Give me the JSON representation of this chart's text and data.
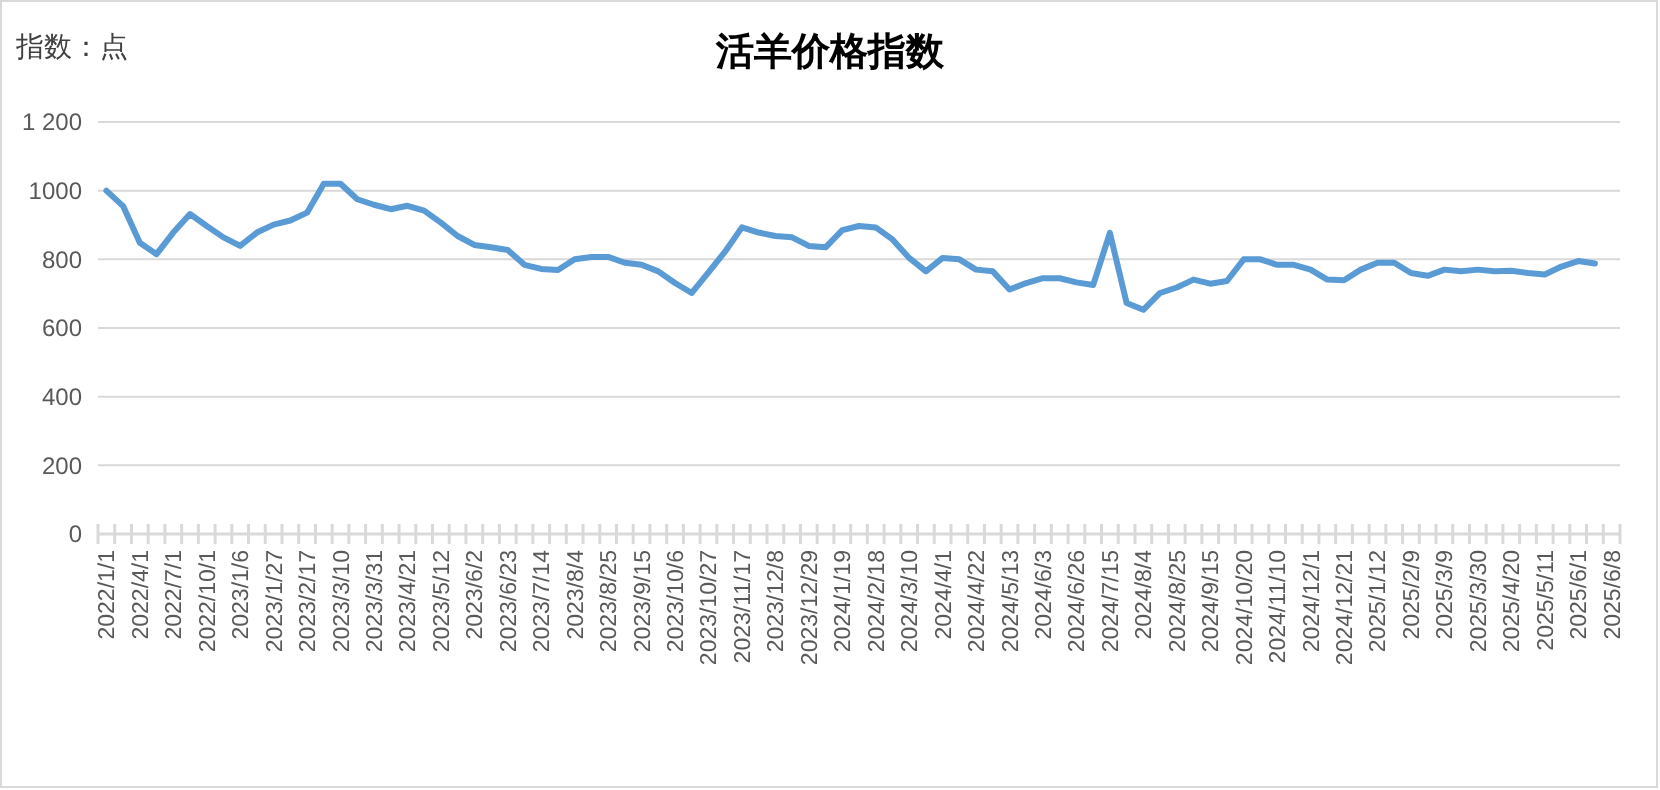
{
  "chart_data": {
    "type": "line",
    "title": "活羊价格指数",
    "ylabel": "指数：点",
    "categories": [
      "2022/1/1",
      null,
      "2022/4/1",
      null,
      "2022/7/1",
      null,
      "2022/10/1",
      null,
      "2023/1/6",
      null,
      "2023/1/27",
      null,
      "2023/2/17",
      null,
      "2023/3/10",
      null,
      "2023/3/31",
      null,
      "2023/4/21",
      null,
      "2023/5/12",
      null,
      "2023/6/2",
      null,
      "2023/6/23",
      null,
      "2023/7/14",
      null,
      "2023/8/4",
      null,
      "2023/8/25",
      null,
      "2023/9/15",
      null,
      "2023/10/6",
      null,
      "2023/10/27",
      null,
      "2023/11/17",
      null,
      "2023/12/8",
      null,
      "2023/12/29",
      null,
      "2024/1/19",
      null,
      "2024/2/18",
      null,
      "2024/3/10",
      null,
      "2024/4/1",
      null,
      "2024/4/22",
      null,
      "2024/5/13",
      null,
      "2024/6/3",
      null,
      "2024/6/26",
      null,
      "2024/7/15",
      null,
      "2024/8/4",
      null,
      "2024/8/25",
      null,
      "2024/9/15",
      null,
      "2024/10/20",
      null,
      "2024/11/10",
      null,
      "2024/12/1",
      null,
      "2024/12/21",
      null,
      "2025/1/12",
      null,
      "2025/2/9",
      null,
      "2025/3/9",
      null,
      "2025/3/30",
      null,
      "2025/4/20",
      null,
      "2025/5/11",
      null,
      "2025/6/1",
      null,
      "2025/6/8"
    ],
    "series": [
      {
        "color": "#5b9bd5",
        "values": [
          1000,
          955,
          848,
          815,
          878,
          932,
          897,
          864,
          839,
          878,
          901,
          913,
          936,
          1020,
          1020,
          975,
          959,
          946,
          956,
          942,
          907,
          868,
          842,
          835,
          827,
          784,
          772,
          769,
          800,
          807,
          807,
          790,
          784,
          765,
          731,
          702,
          762,
          823,
          893,
          878,
          868,
          864,
          839,
          835,
          885,
          897,
          893,
          858,
          804,
          765,
          804,
          800,
          770,
          765,
          712,
          731,
          745,
          745,
          733,
          725,
          877,
          673,
          653,
          702,
          718,
          741,
          729,
          737,
          800,
          800,
          784,
          784,
          770,
          741,
          739,
          770,
          790,
          790,
          760,
          752,
          770,
          765,
          770,
          765,
          767,
          760,
          756,
          779,
          795,
          788,
          null
        ]
      }
    ],
    "ylim": [
      0,
      1200
    ],
    "yticks": [
      0,
      200,
      400,
      600,
      800,
      1000,
      {
        "value": 1200,
        "label": "1 200"
      }
    ],
    "grid": "y",
    "line_style": "solid"
  }
}
